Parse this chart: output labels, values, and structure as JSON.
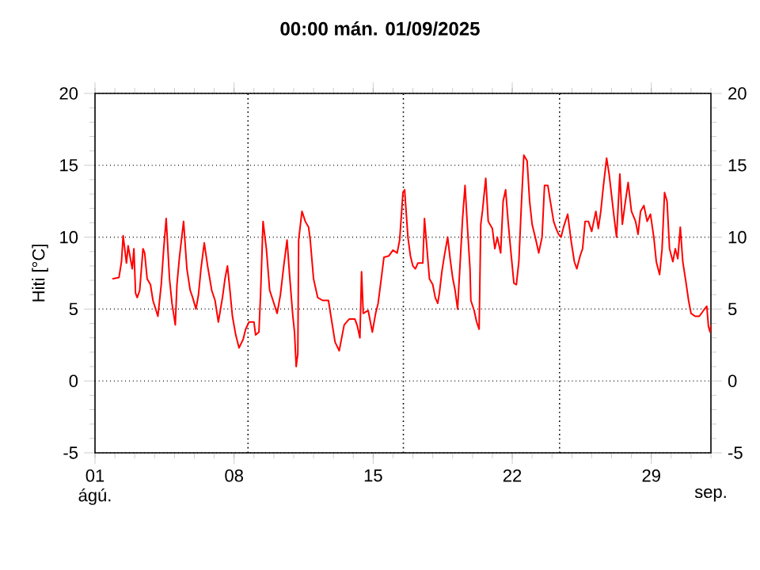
{
  "chart_data": {
    "type": "line",
    "title": "00:00 mán. 01/09/2025",
    "ylabel": "Hiti [°C]",
    "xlim": [
      "2025-08-01",
      "2025-09-01"
    ],
    "xticks": [
      {
        "value": "2025-08-01",
        "label": "01"
      },
      {
        "value": "2025-08-08",
        "label": "08"
      },
      {
        "value": "2025-08-15",
        "label": "15"
      },
      {
        "value": "2025-08-22",
        "label": "22"
      },
      {
        "value": "2025-08-29",
        "label": "29"
      }
    ],
    "annotations": [
      "ágú.",
      "sep."
    ],
    "ylim": [
      -5,
      20
    ],
    "yticks": [
      -5,
      0,
      5,
      10,
      15,
      20
    ],
    "y2lim": [
      -5,
      20
    ],
    "y2ticks": [
      -5,
      0,
      5,
      10,
      15,
      20
    ],
    "grid": "y",
    "ref_lines": [
      {
        "axis": "x",
        "value": "2025-08-08T16:50",
        "color": "#000000",
        "line_style": "dotted"
      },
      {
        "axis": "x",
        "value": "2025-08-16T12:30",
        "color": "#000000",
        "line_style": "dotted"
      },
      {
        "axis": "x",
        "value": "2025-08-24T09:10",
        "color": "#000000",
        "line_style": "dotted"
      }
    ],
    "series": [
      {
        "color": "#ff0000",
        "x": [
          "2025-08-01T21:00",
          "2025-08-02T05:00",
          "2025-08-02T08:00",
          "2025-08-02T10:00",
          "2025-08-02T14:00",
          "2025-08-02T16:00",
          "2025-08-02T21:00",
          "2025-08-02T23:00",
          "2025-08-03T01:00",
          "2025-08-03T03:00",
          "2025-08-03T06:00",
          "2025-08-03T10:00",
          "2025-08-03T12:00",
          "2025-08-03T15:00",
          "2025-08-03T19:00",
          "2025-08-03T22:00",
          "2025-08-04T04:00",
          "2025-08-04T08:00",
          "2025-08-04T11:00",
          "2025-08-04T14:00",
          "2025-08-04T18:00",
          "2025-08-04T21:00",
          "2025-08-05T01:00",
          "2025-08-05T03:00",
          "2025-08-05T06:00",
          "2025-08-05T11:00",
          "2025-08-05T15:00",
          "2025-08-05T19:00",
          "2025-08-05T22:00",
          "2025-08-06T02:00",
          "2025-08-06T05:00",
          "2025-08-06T08:00",
          "2025-08-06T12:00",
          "2025-08-06T16:00",
          "2025-08-06T21:00",
          "2025-08-07T01:00",
          "2025-08-07T05:00",
          "2025-08-07T10:00",
          "2025-08-07T13:00",
          "2025-08-07T16:00",
          "2025-08-07T19:00",
          "2025-08-07T22:00",
          "2025-08-08T02:00",
          "2025-08-08T06:00",
          "2025-08-08T11:00",
          "2025-08-08T14:00",
          "2025-08-08T18:00",
          "2025-08-09T00:00",
          "2025-08-09T02:00",
          "2025-08-09T06:00",
          "2025-08-09T08:00",
          "2025-08-09T11:00",
          "2025-08-09T15:00",
          "2025-08-09T19:00",
          "2025-08-09T23:00",
          "2025-08-10T04:00",
          "2025-08-10T08:00",
          "2025-08-10T12:00",
          "2025-08-10T16:00",
          "2025-08-10T19:00",
          "2025-08-10T23:00",
          "2025-08-11T01:00",
          "2025-08-11T03:00",
          "2025-08-11T05:00",
          "2025-08-11T06:00",
          "2025-08-11T10:00",
          "2025-08-11T14:00",
          "2025-08-11T18:00",
          "2025-08-11T20:00",
          "2025-08-12T00:00",
          "2025-08-12T05:00",
          "2025-08-12T11:00",
          "2025-08-12T18:00",
          "2025-08-12T21:00",
          "2025-08-13T02:00",
          "2025-08-13T07:00",
          "2025-08-13T13:00",
          "2025-08-13T19:00",
          "2025-08-14T02:00",
          "2025-08-14T05:00",
          "2025-08-14T08:00",
          "2025-08-14T10:00",
          "2025-08-14T12:00",
          "2025-08-14T18:00",
          "2025-08-14T23:00",
          "2025-08-15T03:00",
          "2025-08-15T06:00",
          "2025-08-15T10:00",
          "2025-08-15T13:00",
          "2025-08-15T19:00",
          "2025-08-16T00:00",
          "2025-08-16T05:00",
          "2025-08-16T08:00",
          "2025-08-16T12:00",
          "2025-08-16T14:00",
          "2025-08-16T18:00",
          "2025-08-16T21:00",
          "2025-08-17T00:00",
          "2025-08-17T03:00",
          "2025-08-17T06:00",
          "2025-08-17T12:00",
          "2025-08-17T14:00",
          "2025-08-17T17:00",
          "2025-08-17T20:00",
          "2025-08-18T00:00",
          "2025-08-18T03:00",
          "2025-08-18T06:00",
          "2025-08-18T08:00",
          "2025-08-18T11:00",
          "2025-08-18T14:00",
          "2025-08-18T18:00",
          "2025-08-18T21:00",
          "2025-08-19T00:00",
          "2025-08-19T03:00",
          "2025-08-19T06:00",
          "2025-08-19T10:00",
          "2025-08-19T12:00",
          "2025-08-19T15:00",
          "2025-08-19T18:00",
          "2025-08-19T21:00",
          "2025-08-19T22:00",
          "2025-08-20T02:00",
          "2025-08-20T05:00",
          "2025-08-20T08:00",
          "2025-08-20T10:00",
          "2025-08-20T12:00",
          "2025-08-20T16:00",
          "2025-08-20T19:00",
          "2025-08-21T00:00",
          "2025-08-21T03:00",
          "2025-08-21T06:00",
          "2025-08-21T10:00",
          "2025-08-21T13:00",
          "2025-08-21T16:00",
          "2025-08-21T19:00",
          "2025-08-21T22:00",
          "2025-08-22T02:00",
          "2025-08-22T05:00",
          "2025-08-22T08:00",
          "2025-08-22T11:00",
          "2025-08-22T14:00",
          "2025-08-22T18:00",
          "2025-08-22T21:00",
          "2025-08-23T00:00",
          "2025-08-23T05:00",
          "2025-08-23T08:00",
          "2025-08-23T12:00",
          "2025-08-23T15:00",
          "2025-08-23T19:00",
          "2025-08-23T22:00",
          "2025-08-24T02:00",
          "2025-08-24T05:00",
          "2025-08-24T08:00",
          "2025-08-24T11:00",
          "2025-08-24T14:00",
          "2025-08-24T19:00",
          "2025-08-24T23:00",
          "2025-08-25T03:00",
          "2025-08-25T06:00",
          "2025-08-25T10:00",
          "2025-08-25T13:00",
          "2025-08-25T16:00",
          "2025-08-25T20:00",
          "2025-08-26T00:00",
          "2025-08-26T05:00",
          "2025-08-26T08:00",
          "2025-08-26T11:00",
          "2025-08-26T14:00",
          "2025-08-26T18:00",
          "2025-08-26T21:00",
          "2025-08-27T00:00",
          "2025-08-27T03:00",
          "2025-08-27T06:00",
          "2025-08-27T10:00",
          "2025-08-27T13:00",
          "2025-08-27T16:00",
          "2025-08-27T20:00",
          "2025-08-28T00:00",
          "2025-08-28T05:00",
          "2025-08-28T08:00",
          "2025-08-28T11:00",
          "2025-08-28T15:00",
          "2025-08-28T19:00",
          "2025-08-28T23:00",
          "2025-08-29T03:00",
          "2025-08-29T06:00",
          "2025-08-29T10:00",
          "2025-08-29T13:00",
          "2025-08-29T16:00",
          "2025-08-29T19:00",
          "2025-08-29T22:00",
          "2025-08-30T02:00",
          "2025-08-30T05:00",
          "2025-08-30T08:00",
          "2025-08-30T11:00",
          "2025-08-30T14:00",
          "2025-08-30T18:00",
          "2025-08-30T21:00",
          "2025-08-31T00:00",
          "2025-08-31T05:00",
          "2025-08-31T10:00",
          "2025-08-31T15:00",
          "2025-08-31T19:00",
          "2025-08-31T21:00",
          "2025-08-31T23:00",
          "2025-09-01T00:00"
        ],
        "values": [
          7.1,
          7.2,
          8.3,
          10.1,
          8.2,
          9.4,
          7.8,
          9.2,
          6.1,
          5.8,
          6.3,
          9.2,
          8.9,
          7.1,
          6.7,
          5.6,
          4.5,
          6.7,
          9.2,
          11.3,
          7.1,
          5.4,
          3.9,
          6.7,
          8.6,
          11.1,
          7.8,
          6.3,
          5.8,
          5.0,
          6.0,
          7.8,
          9.6,
          8.0,
          6.3,
          5.6,
          4.1,
          5.8,
          7.1,
          8.0,
          6.3,
          4.5,
          3.2,
          2.3,
          2.9,
          3.6,
          4.1,
          4.1,
          3.2,
          3.4,
          6.0,
          11.1,
          9.2,
          6.3,
          5.6,
          4.7,
          6.0,
          8.0,
          9.8,
          7.4,
          4.5,
          3.4,
          1.0,
          1.9,
          9.8,
          11.8,
          11.1,
          10.7,
          9.8,
          7.1,
          5.8,
          5.6,
          5.6,
          4.5,
          2.7,
          2.1,
          3.9,
          4.3,
          4.3,
          3.8,
          3.0,
          7.6,
          4.7,
          4.9,
          3.4,
          4.7,
          5.4,
          7.2,
          8.6,
          8.7,
          9.1,
          8.9,
          9.8,
          13.1,
          13.3,
          10.0,
          8.7,
          8.0,
          7.8,
          8.2,
          8.2,
          11.3,
          9.2,
          7.1,
          6.7,
          5.8,
          5.4,
          6.1,
          7.6,
          8.7,
          10.0,
          8.5,
          7.2,
          6.3,
          5.0,
          9.2,
          11.3,
          13.6,
          10.6,
          7.8,
          5.6,
          4.9,
          4.1,
          3.6,
          10.9,
          11.8,
          14.1,
          11.1,
          10.6,
          9.2,
          10.0,
          8.9,
          12.5,
          13.3,
          11.1,
          9.2,
          6.8,
          6.7,
          8.3,
          12.2,
          15.7,
          15.3,
          12.5,
          10.9,
          9.7,
          8.9,
          10.0,
          13.6,
          13.6,
          12.5,
          11.1,
          10.6,
          10.2,
          10.0,
          10.7,
          11.6,
          9.8,
          8.3,
          7.8,
          8.7,
          9.2,
          11.1,
          11.1,
          10.4,
          11.8,
          10.6,
          11.8,
          13.5,
          15.5,
          14.4,
          12.9,
          11.4,
          10.0,
          14.4,
          10.9,
          12.2,
          13.8,
          11.8,
          11.1,
          10.2,
          11.8,
          12.2,
          11.1,
          11.6,
          10.0,
          8.3,
          7.4,
          9.2,
          13.1,
          12.5,
          9.2,
          8.3,
          9.2,
          8.5,
          10.7,
          8.3,
          6.8,
          5.6,
          4.7,
          4.5,
          4.5,
          4.9,
          5.2,
          3.8,
          3.4,
          3.9
        ]
      }
    ]
  }
}
